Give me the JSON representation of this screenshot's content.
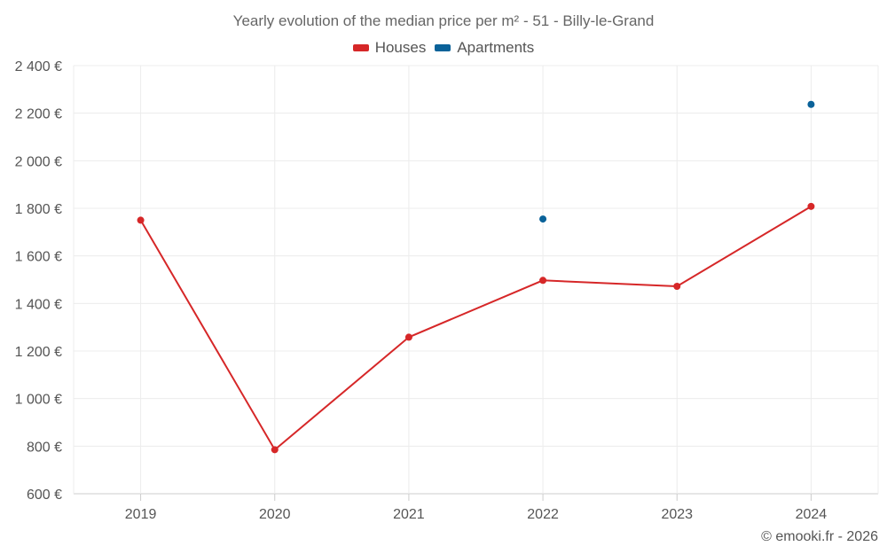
{
  "chart_data": {
    "type": "line",
    "title": "Yearly evolution of the median price per m² - 51 - Billy-le-Grand",
    "categories": [
      "2019",
      "2020",
      "2021",
      "2022",
      "2023",
      "2024"
    ],
    "series": [
      {
        "name": "Houses",
        "color": "#d62728",
        "values": [
          1750,
          785,
          1258,
          1497,
          1472,
          1808
        ]
      },
      {
        "name": "Apartments",
        "color": "#0a6299",
        "values": [
          null,
          null,
          null,
          1755,
          null,
          2237
        ]
      }
    ],
    "y_ticks": [
      "600 €",
      "800 €",
      "1 000 €",
      "1 200 €",
      "1 400 €",
      "1 600 €",
      "1 800 €",
      "2 000 €",
      "2 200 €",
      "2 400 €"
    ],
    "ylim": [
      600,
      2400
    ],
    "xlabel": "",
    "ylabel": "",
    "grid": true,
    "legend_position": "top-center"
  },
  "credit": "© emooki.fr - 2026"
}
